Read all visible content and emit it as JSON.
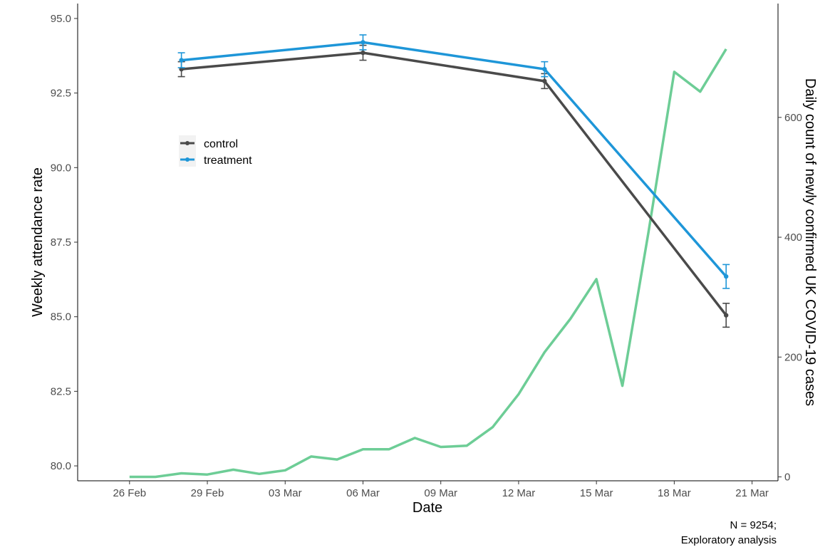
{
  "chart_data": {
    "type": "line",
    "xlabel": "Date",
    "ylabel": "Weekly attendance rate",
    "ylabel_right": "Daily count of newly confirmed UK COVID-19 cases",
    "x_ticks": [
      "26 Feb",
      "29 Feb",
      "03 Mar",
      "06 Mar",
      "09 Mar",
      "12 Mar",
      "15 Mar",
      "18 Mar",
      "21 Mar"
    ],
    "x_tick_dates": [
      "2020-02-26",
      "2020-02-29",
      "2020-03-03",
      "2020-03-06",
      "2020-03-09",
      "2020-03-12",
      "2020-03-15",
      "2020-03-18",
      "2020-03-21"
    ],
    "xlim": [
      "2020-02-24",
      "2020-03-22"
    ],
    "y_ticks": [
      "80.0",
      "82.5",
      "85.0",
      "87.5",
      "90.0",
      "92.5",
      "95.0"
    ],
    "ylim": [
      79.5,
      95.5
    ],
    "y2_ticks": [
      "0",
      "200",
      "400",
      "600"
    ],
    "y2lim": [
      -6.5,
      790
    ],
    "grid": false,
    "legend_position": "top-left, inside",
    "series": [
      {
        "name": "control",
        "axis": "left",
        "color": "#4a4a4a",
        "marker": "point-with-errorbar",
        "x": [
          "2020-02-28",
          "2020-03-06",
          "2020-03-13",
          "2020-03-20"
        ],
        "y": [
          93.3,
          93.85,
          92.9,
          85.05
        ],
        "err_low": [
          93.05,
          93.6,
          92.65,
          84.65
        ],
        "err_high": [
          93.55,
          94.1,
          93.15,
          85.45
        ]
      },
      {
        "name": "treatment",
        "axis": "left",
        "color": "#1e96d8",
        "marker": "point-with-errorbar",
        "x": [
          "2020-02-28",
          "2020-03-06",
          "2020-03-13",
          "2020-03-20"
        ],
        "y": [
          93.6,
          94.2,
          93.3,
          86.35
        ],
        "err_low": [
          93.35,
          93.95,
          93.05,
          85.95
        ],
        "err_high": [
          93.85,
          94.45,
          93.55,
          86.75
        ]
      },
      {
        "axis": "right",
        "color": "#6dcd96",
        "marker": "none",
        "x": [
          "2020-02-26",
          "2020-02-27",
          "2020-02-28",
          "2020-02-29",
          "2020-03-01",
          "2020-03-02",
          "2020-03-03",
          "2020-03-04",
          "2020-03-05",
          "2020-03-06",
          "2020-03-07",
          "2020-03-08",
          "2020-03-09",
          "2020-03-10",
          "2020-03-11",
          "2020-03-12",
          "2020-03-13",
          "2020-03-14",
          "2020-03-15",
          "2020-03-16",
          "2020-03-17",
          "2020-03-18",
          "2020-03-19",
          "2020-03-20"
        ],
        "y": [
          0,
          0,
          6,
          4,
          12,
          5,
          11,
          34,
          29,
          46,
          46,
          65,
          50,
          52,
          83,
          138,
          208,
          264,
          330,
          152,
          407,
          676,
          643,
          714
        ]
      }
    ],
    "caption": [
      "N = 9254;",
      "Exploratory analysis"
    ]
  }
}
